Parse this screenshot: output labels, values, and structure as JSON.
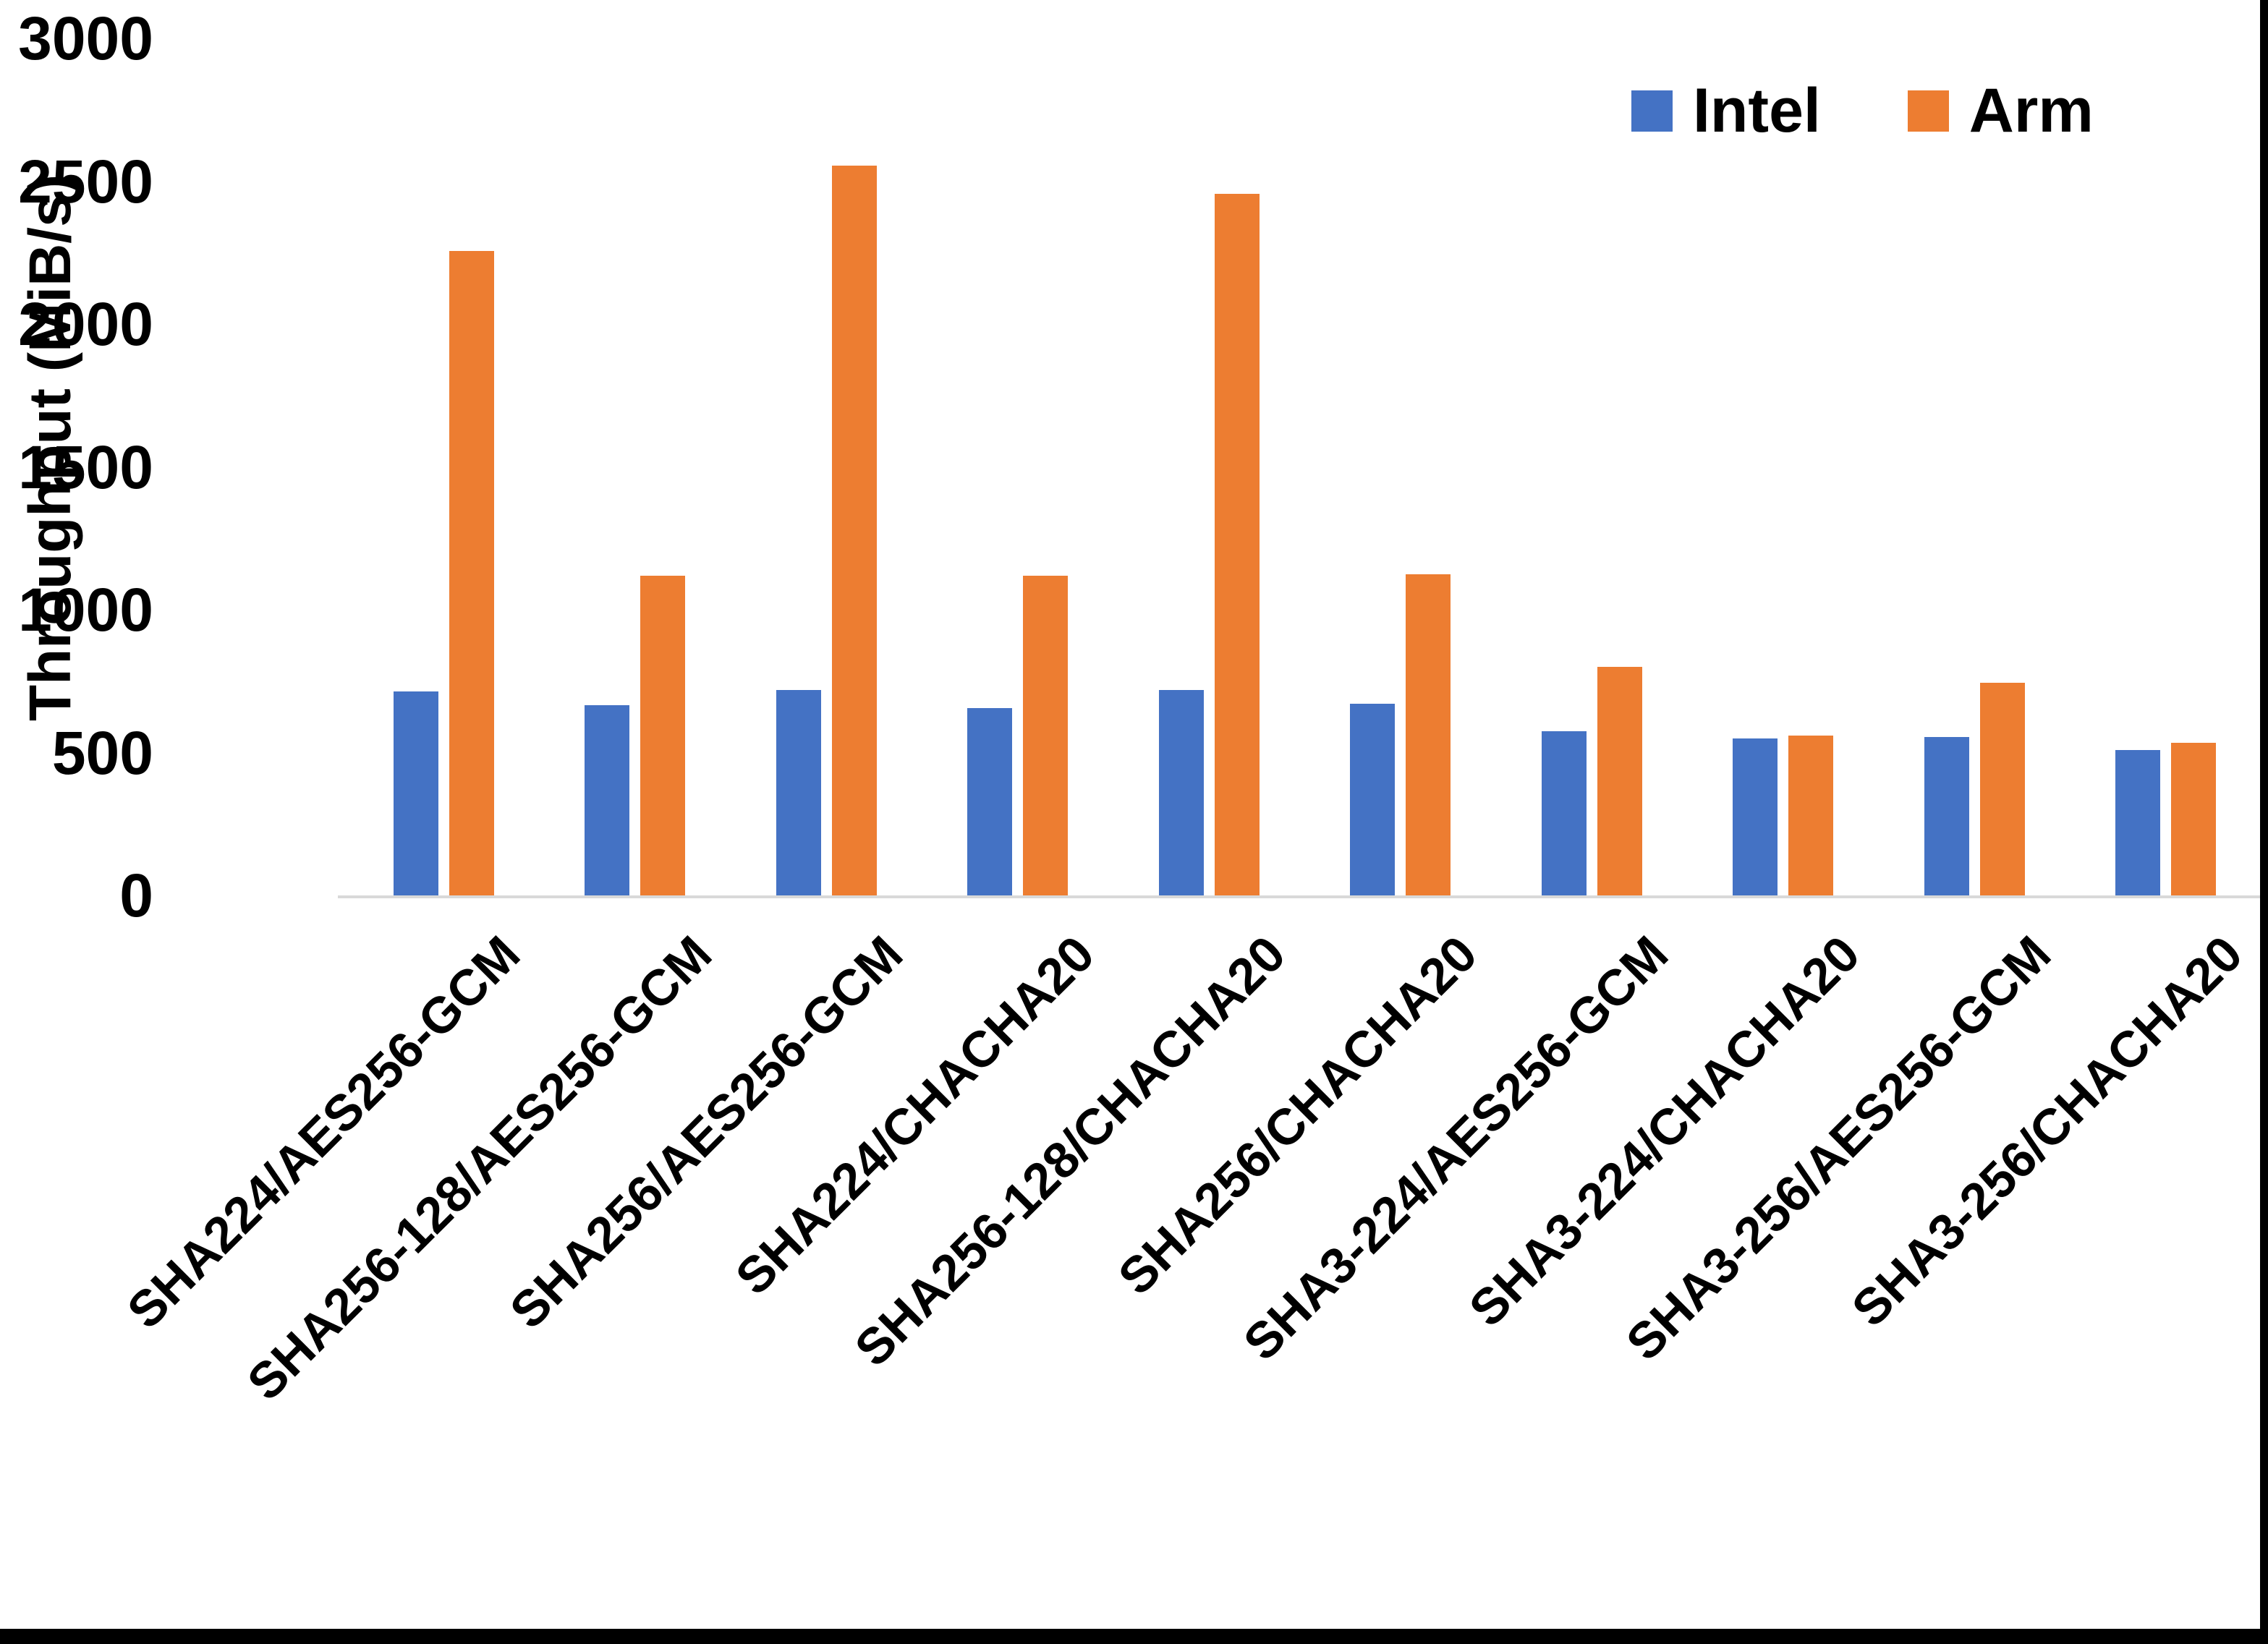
{
  "chart_data": {
    "type": "bar",
    "title": "",
    "xlabel": "",
    "ylabel": "Throughput (MiB/s)",
    "ylim": [
      0,
      3000
    ],
    "ytick_step": 500,
    "ytick_labels": [
      "0",
      "500",
      "1000",
      "1500",
      "2000",
      "2500",
      "3000"
    ],
    "grid": false,
    "legend_position": "top-right",
    "axis_line_color": "#d9d9d9",
    "categories": [
      "SHA224/AES256-GCM",
      "SHA256-128/AES256-GCM",
      "SHA256/AES256-GCM",
      "SHA224/CHACHA20",
      "SHA256-128/CHACHA20",
      "SHA256/CHACHA20",
      "SHA3-224/AES256-GCM",
      "SHA3-224/CHACHA20",
      "SHA3-256/AES256-GCM",
      "SHA3-256/CHACHA20"
    ],
    "series": [
      {
        "name": "Intel",
        "color": "#4472c4",
        "values": [
          715,
          665,
          720,
          655,
          720,
          670,
          575,
          550,
          555,
          510
        ]
      },
      {
        "name": "Arm",
        "color": "#ed7d31",
        "values": [
          2255,
          1120,
          2555,
          1120,
          2455,
          1125,
          800,
          560,
          745,
          535
        ]
      }
    ]
  }
}
